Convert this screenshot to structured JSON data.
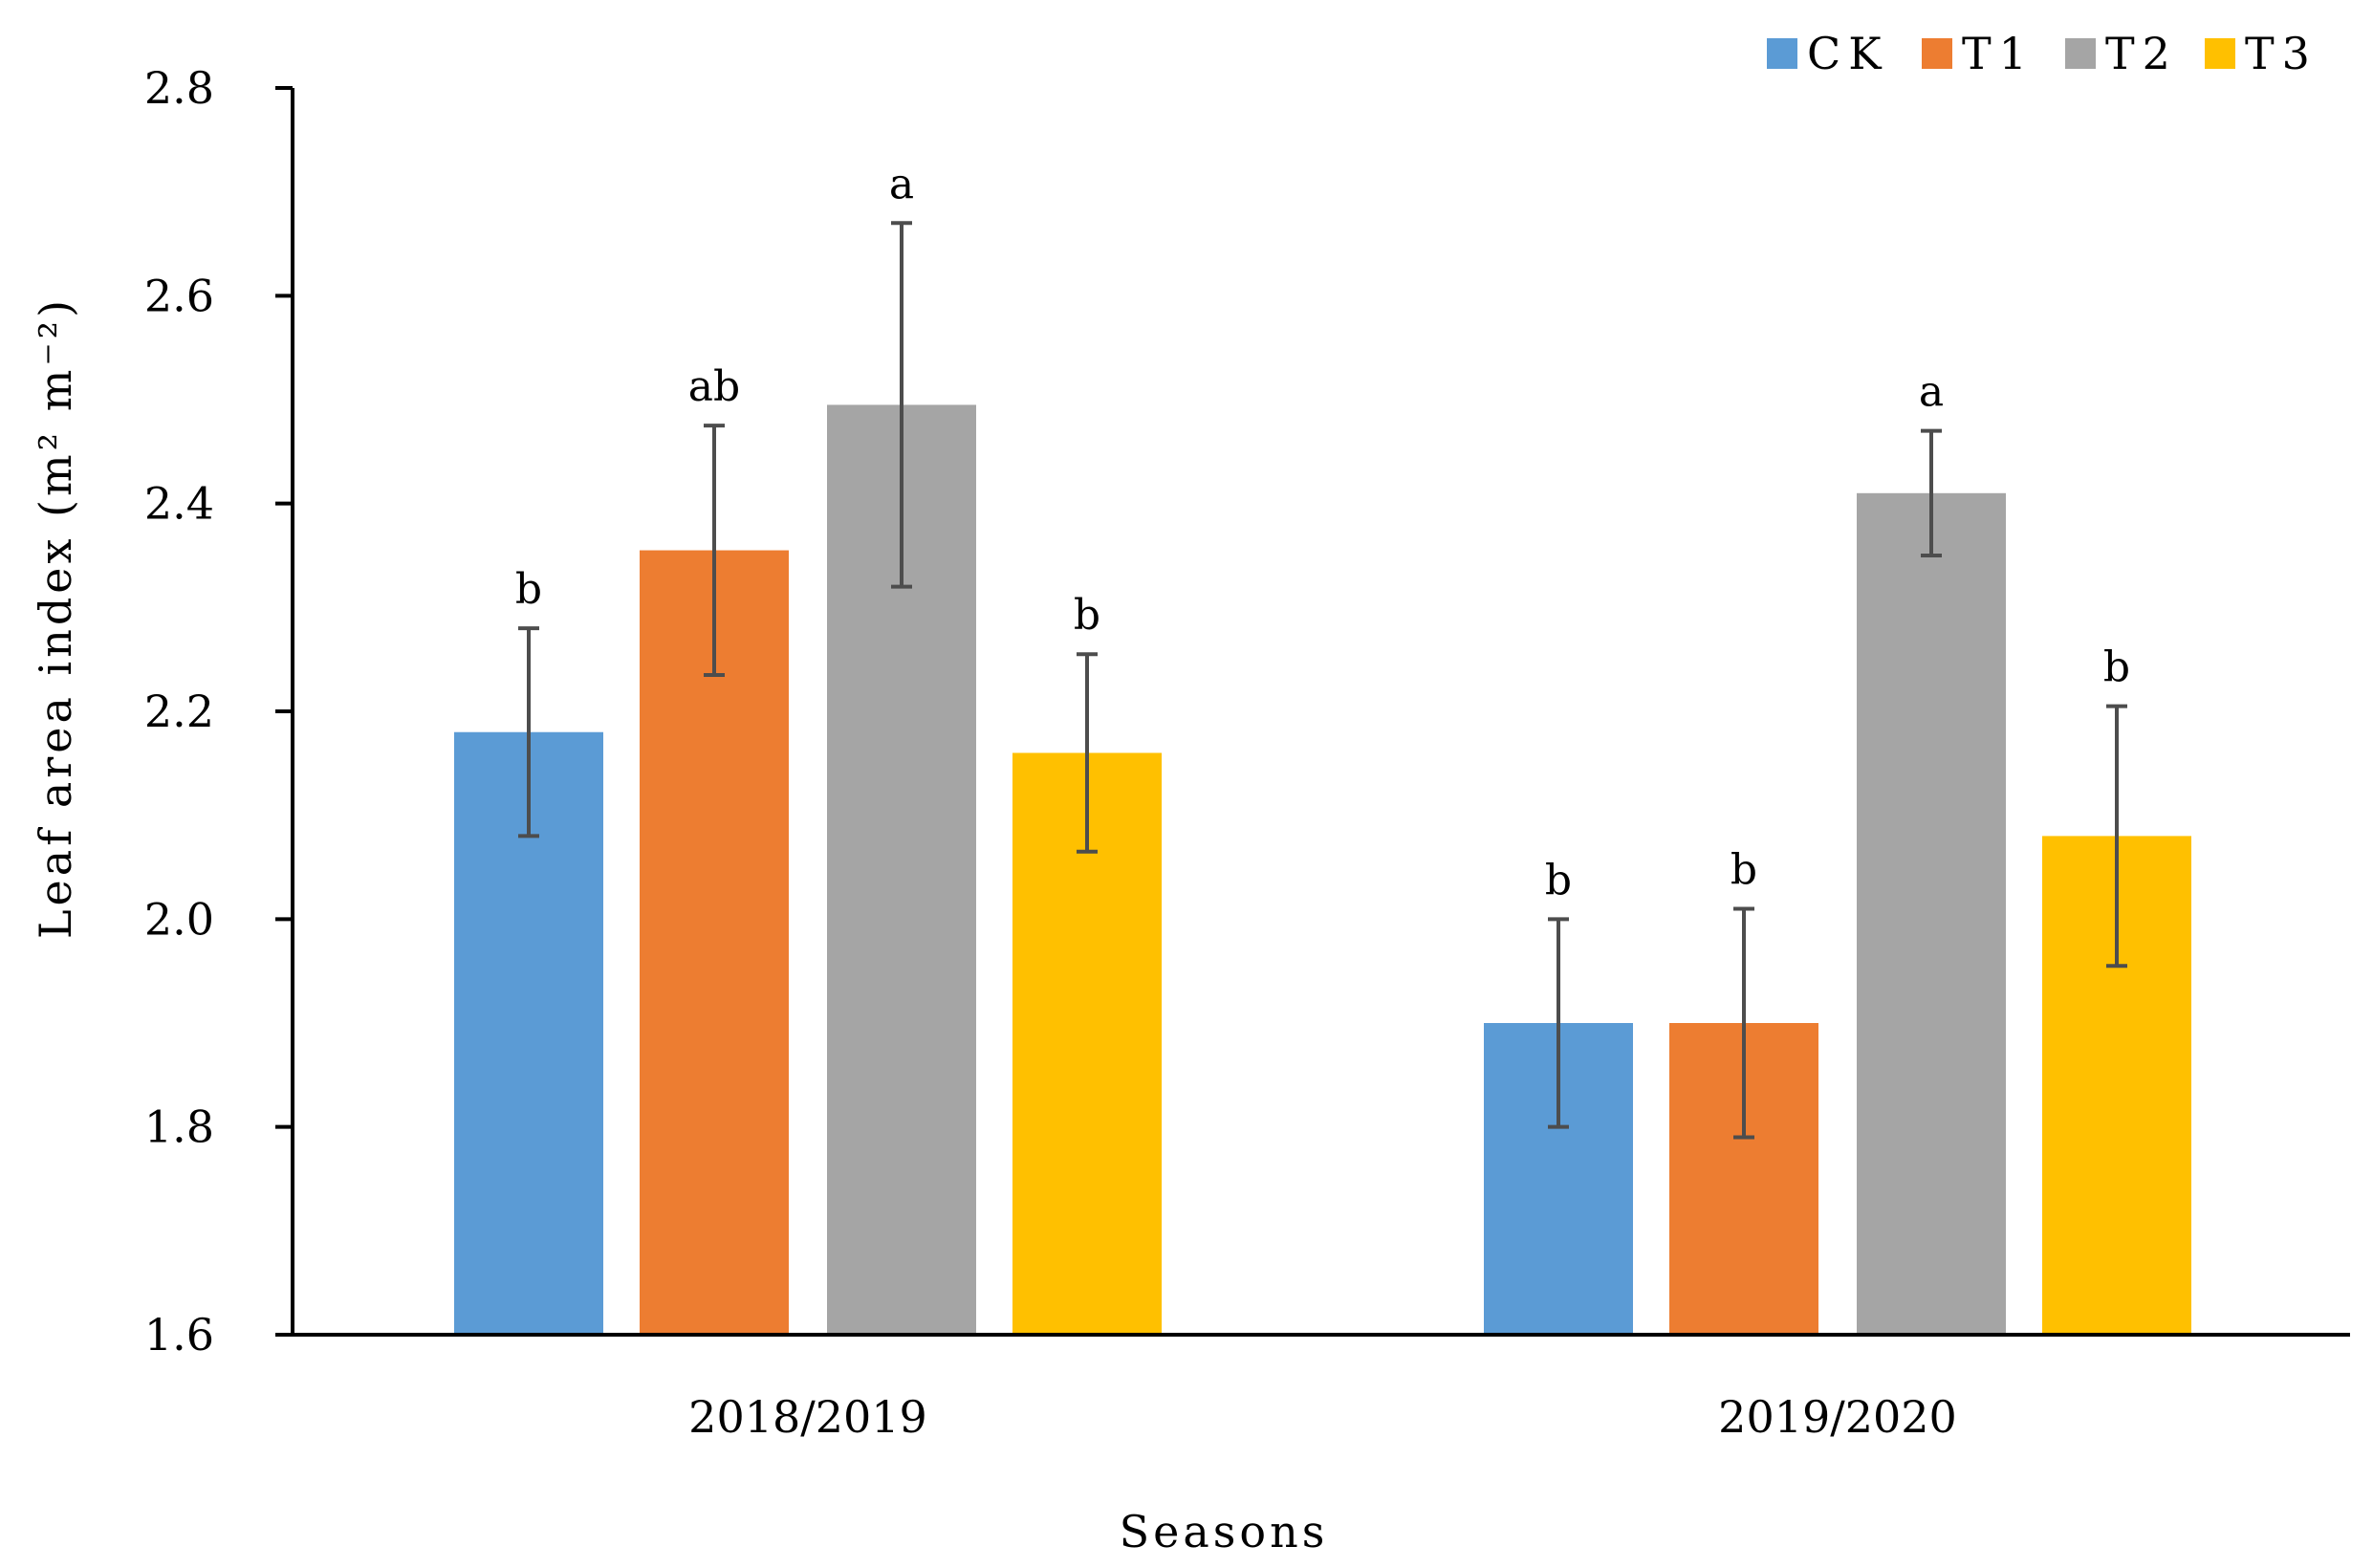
{
  "chart_data": {
    "type": "bar",
    "title": "",
    "xlabel": "Seasons",
    "ylabel": "Leaf area index (m² m⁻²)",
    "ylim": [
      1.6,
      2.8
    ],
    "yticks": [
      "1.6",
      "1.8",
      "2.0",
      "2.2",
      "2.4",
      "2.6",
      "2.8"
    ],
    "grid": false,
    "legend_position": "top-right",
    "categories": [
      "2018/2019",
      "2019/2020"
    ],
    "series": [
      {
        "name": "CK",
        "color": "#5b9bd5",
        "values": [
          2.18,
          1.9
        ],
        "errors": [
          0.1,
          0.1
        ],
        "labels": [
          "b",
          "b"
        ]
      },
      {
        "name": "T1",
        "color": "#ed7d31",
        "values": [
          2.355,
          1.9
        ],
        "errors": [
          0.12,
          0.11
        ],
        "labels": [
          "ab",
          "b"
        ]
      },
      {
        "name": "T2",
        "color": "#a5a5a5",
        "values": [
          2.495,
          2.41
        ],
        "errors": [
          0.175,
          0.06
        ],
        "labels": [
          "a",
          "a"
        ]
      },
      {
        "name": "T3",
        "color": "#ffc000",
        "values": [
          2.16,
          2.08
        ],
        "errors": [
          0.095,
          0.125
        ],
        "labels": [
          "b",
          "b"
        ]
      }
    ]
  }
}
